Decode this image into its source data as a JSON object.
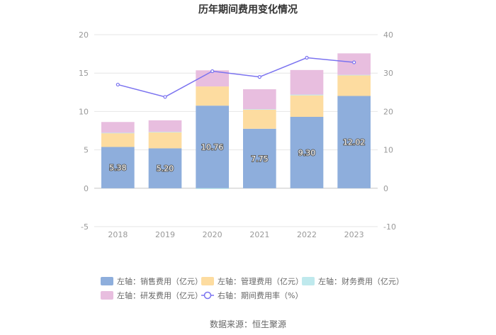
{
  "chart_data": {
    "type": "bar",
    "title": "历年期间费用变化情况",
    "categories": [
      "2018",
      "2019",
      "2020",
      "2021",
      "2022",
      "2023"
    ],
    "y_left": {
      "ticks": [
        "20",
        "15",
        "10",
        "5",
        "0",
        "-5"
      ],
      "lim": [
        -5,
        20
      ]
    },
    "y_right": {
      "ticks": [
        "40",
        "30",
        "20",
        "10",
        "0",
        "-10"
      ],
      "lim": [
        -10,
        40
      ]
    },
    "series": [
      {
        "name": "左轴：销售费用（亿元）",
        "type": "stacked-bar",
        "axis": "left",
        "color": "#8eaedc",
        "values": [
          5.38,
          5.2,
          10.76,
          7.75,
          9.3,
          12.02
        ],
        "labels": [
          "5.38",
          "5.20",
          "10.76",
          "7.75",
          "9.30",
          "12.02"
        ]
      },
      {
        "name": "左轴：管理费用（亿元）",
        "type": "stacked-bar",
        "axis": "left",
        "color": "#fddca0",
        "values": [
          1.8,
          2.1,
          2.5,
          2.5,
          2.8,
          2.7
        ]
      },
      {
        "name": "左轴：财务费用（亿元）",
        "type": "stacked-bar",
        "axis": "left",
        "color": "#bfe9ed",
        "values": [
          0.05,
          0.05,
          -0.1,
          0.05,
          0.1,
          0.05
        ]
      },
      {
        "name": "左轴：研发费用（亿元）",
        "type": "stacked-bar",
        "axis": "left",
        "color": "#e8bedf",
        "values": [
          1.4,
          1.5,
          2.1,
          2.6,
          3.2,
          2.8
        ]
      },
      {
        "name": "右轴：期间费用率（%）",
        "type": "line",
        "axis": "right",
        "color": "#7b73f0",
        "values": [
          27.0,
          23.8,
          30.5,
          29.0,
          34.0,
          32.8
        ]
      }
    ],
    "grid": true,
    "legend_position": "bottom"
  },
  "source": "数据来源：恒生聚源"
}
